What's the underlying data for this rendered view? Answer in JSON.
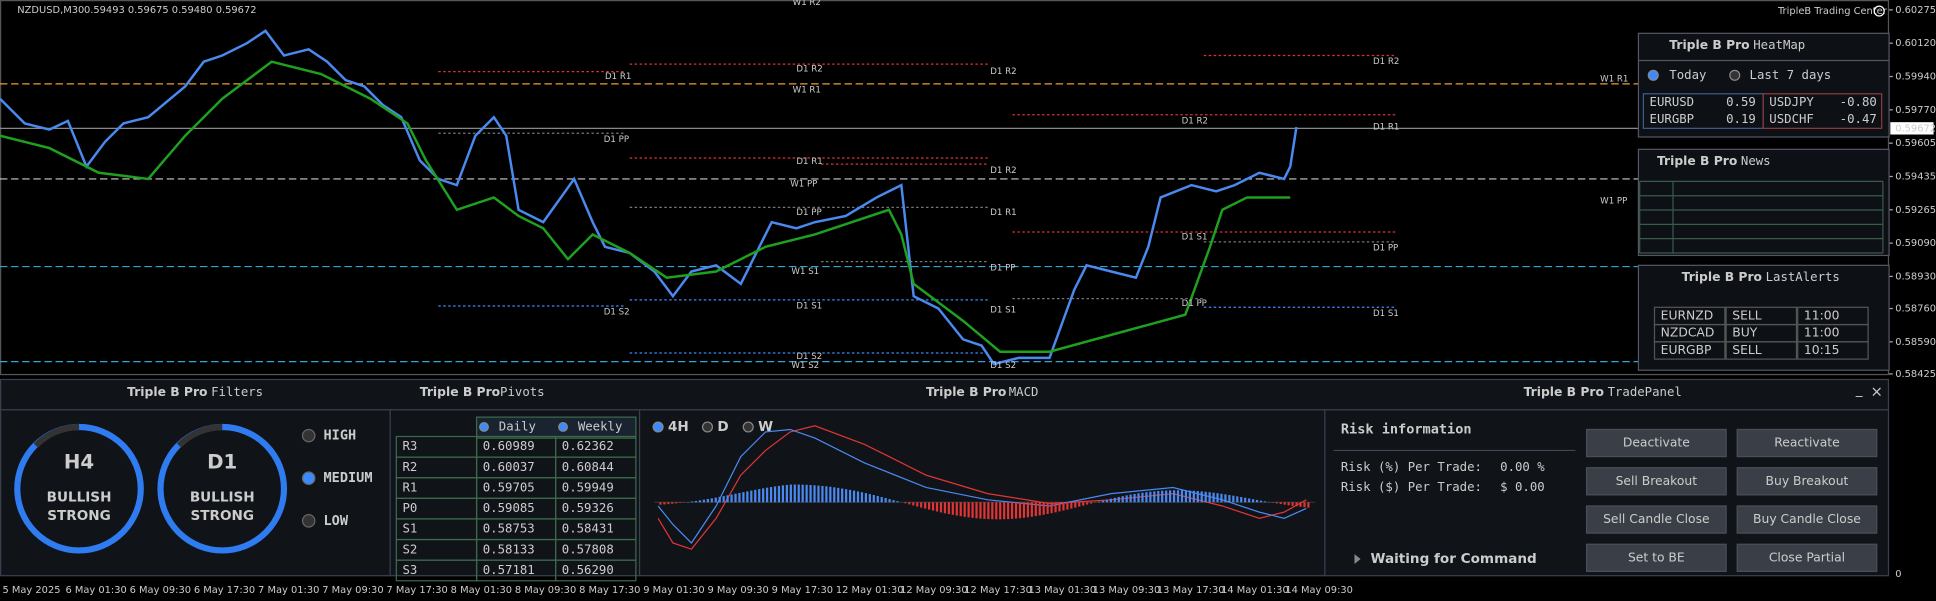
{
  "header": {
    "symbol": "NZDUSD,M30",
    "ohlc": "0.59493 0.59675 0.59480 0.59672",
    "brand": "TripleB Trading Center"
  },
  "price_axis": [
    "0.60275",
    "0.60120",
    "0.59940",
    "0.59770",
    "0.59605",
    "0.59435",
    "0.59265",
    "0.59090",
    "0.58930",
    "0.58760",
    "0.58590",
    "0.58425"
  ],
  "current_price": "0.59672",
  "time_axis": [
    "5 May 2025",
    "6 May 01:30",
    "6 May 09:30",
    "6 May 17:30",
    "7 May 01:30",
    "7 May 09:30",
    "7 May 17:30",
    "8 May 01:30",
    "8 May 09:30",
    "8 May 17:30",
    "9 May 01:30",
    "9 May 09:30",
    "9 May 17:30",
    "12 May 01:30",
    "12 May 09:30",
    "12 May 17:30",
    "13 May 01:30",
    "13 May 09:30",
    "13 May 17:30",
    "14 May 01:30",
    "14 May 09:30"
  ],
  "levels": [
    "W1 R2",
    "D1 R1",
    "D1 R2",
    "W1 R1",
    "D1 R2",
    "D1 R2",
    "W1 R1",
    "D1 PP",
    "D1 R1",
    "D1 R2",
    "D1 R2",
    "D1 R1",
    "W1 PP",
    "W1 PP",
    "D1 PP",
    "D1 R1",
    "D1 S1",
    "D1 PP",
    "W1 S1",
    "D1 PP",
    "D1 S2",
    "D1 S1",
    "D1 S1",
    "D1 PP",
    "D1 S1",
    "D1 S2",
    "W1 S2",
    "D1 S2"
  ],
  "heatmap": {
    "brand": "Triple B Pro",
    "title": "HeatMap",
    "options": [
      "Today",
      "Last 7 days"
    ],
    "rows": [
      [
        "EURUSD",
        "0.59",
        "USDJPY",
        "-0.80"
      ],
      [
        "EURGBP",
        "0.19",
        "USDCHF",
        "-0.47"
      ]
    ]
  },
  "news": {
    "brand": "Triple B Pro",
    "title": "News"
  },
  "alerts": {
    "brand": "Triple B Pro",
    "title": "LastAlerts",
    "rows": [
      [
        "EURNZD",
        "SELL",
        "11:00"
      ],
      [
        "NZDCAD",
        "BUY",
        "11:00"
      ],
      [
        "EURGBP",
        "SELL",
        "10:15"
      ]
    ]
  },
  "filters": {
    "brand": "Triple B Pro",
    "title": "Filters",
    "gauges": [
      {
        "tf": "H4",
        "line1": "BULLISH",
        "line2": "STRONG"
      },
      {
        "tf": "D1",
        "line1": "BULLISH",
        "line2": "STRONG"
      }
    ],
    "options": [
      "HIGH",
      "MEDIUM",
      "LOW"
    ]
  },
  "pivots": {
    "brand": "Triple B Pro",
    "title": "Pivots",
    "columns": [
      "Daily",
      "Weekly"
    ],
    "rows": [
      [
        "R3",
        "0.60989",
        "0.62362"
      ],
      [
        "R2",
        "0.60037",
        "0.60844"
      ],
      [
        "R1",
        "0.59705",
        "0.59949"
      ],
      [
        "P0",
        "0.59085",
        "0.59326"
      ],
      [
        "S1",
        "0.58753",
        "0.58431"
      ],
      [
        "S2",
        "0.58133",
        "0.57808"
      ],
      [
        "S3",
        "0.57181",
        "0.56290"
      ]
    ]
  },
  "macd": {
    "brand": "Triple B Pro",
    "title": "MACD",
    "timeframes": [
      "4H",
      "D",
      "W"
    ],
    "axis": "0"
  },
  "trade": {
    "brand": "Triple B Pro",
    "title": "TradePanel",
    "risk_title": "Risk information",
    "risk": [
      [
        "Risk (%) Per Trade:",
        "0.00 %"
      ],
      [
        "Risk ($) Per Trade:",
        "$ 0.00"
      ]
    ],
    "status": "Waiting for Command",
    "buttons": [
      "Deactivate",
      "Reactivate",
      "Sell Breakout",
      "Buy Breakout",
      "Sell Candle Close",
      "Buy Candle Close",
      "Set to BE",
      "Close Partial"
    ]
  },
  "controls": [
    "_",
    "×"
  ]
}
